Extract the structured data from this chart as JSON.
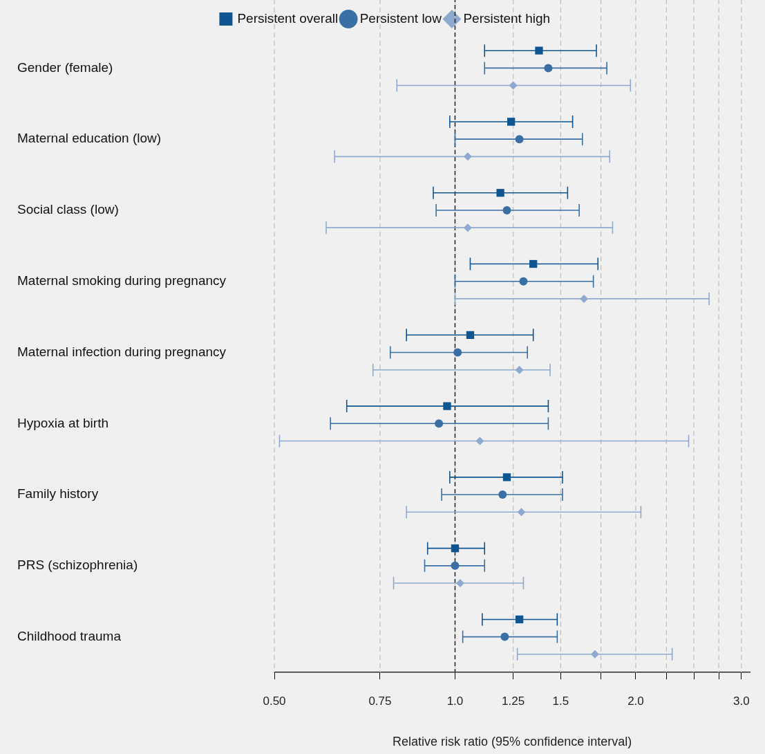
{
  "chart_data": {
    "type": "scatter",
    "orientation": "horizontal",
    "xlabel": "Relative risk ratio (95% confidence interval)",
    "categories": [
      "Gender (female)",
      "Maternal education (low)",
      "Social class (low)",
      "Maternal smoking during pregnancy",
      "Maternal infection during pregnancy",
      "Hypoxia at birth",
      "Family history",
      "PRS (schizophrenia)",
      "Childhood trauma"
    ],
    "series": [
      {
        "name": "Persistent overall",
        "color": "#0f5592",
        "marker": "square",
        "values": [
          1.38,
          1.24,
          1.19,
          1.35,
          1.06,
          0.97,
          1.22,
          1.0,
          1.28
        ],
        "errors": [
          [
            1.12,
            1.72
          ],
          [
            0.98,
            1.57
          ],
          [
            0.92,
            1.54
          ],
          [
            1.06,
            1.73
          ],
          [
            0.83,
            1.35
          ],
          [
            0.66,
            1.43
          ],
          [
            0.98,
            1.51
          ],
          [
            0.9,
            1.12
          ],
          [
            1.11,
            1.48
          ]
        ]
      },
      {
        "name": "Persistent low",
        "color": "#3a6fa6",
        "marker": "circle",
        "values": [
          1.43,
          1.28,
          1.22,
          1.3,
          1.01,
          0.94,
          1.2,
          1.0,
          1.21
        ],
        "errors": [
          [
            1.12,
            1.79
          ],
          [
            1.0,
            1.63
          ],
          [
            0.93,
            1.61
          ],
          [
            1.0,
            1.7
          ],
          [
            0.78,
            1.32
          ],
          [
            0.62,
            1.43
          ],
          [
            0.95,
            1.51
          ],
          [
            0.89,
            1.12
          ],
          [
            1.03,
            1.48
          ]
        ]
      },
      {
        "name": "Persistent high",
        "color": "#8ea9cf",
        "marker": "diamond",
        "values": [
          1.25,
          1.05,
          1.05,
          1.64,
          1.28,
          1.1,
          1.29,
          1.02,
          1.71
        ],
        "errors": [
          [
            0.8,
            1.96
          ],
          [
            0.63,
            1.81
          ],
          [
            0.61,
            1.83
          ],
          [
            1.0,
            2.65
          ],
          [
            0.73,
            1.44
          ],
          [
            0.51,
            2.45
          ],
          [
            0.83,
            2.04
          ],
          [
            0.79,
            1.3
          ],
          [
            1.27,
            2.3
          ]
        ]
      }
    ],
    "log": "x",
    "xlim": [
      0.5,
      3.1
    ],
    "xticks": [
      {
        "value": 0.5,
        "label": "0.50"
      },
      0.75,
      {
        "value": 1,
        "label": "1.0"
      },
      1.25,
      1.5,
      {
        "value": 1.75,
        "label": null
      },
      {
        "value": 2,
        "label": "2.0"
      },
      {
        "value": 2.25,
        "label": null
      },
      {
        "value": 2.5,
        "label": null
      },
      {
        "value": 2.75,
        "label": null
      },
      {
        "value": 3,
        "label": "3.0"
      }
    ],
    "ref_lines": [
      {
        "axis": "x",
        "value": 1,
        "color": "#222222",
        "line_style": "dashed"
      }
    ],
    "grid": "x",
    "legend": "top"
  }
}
